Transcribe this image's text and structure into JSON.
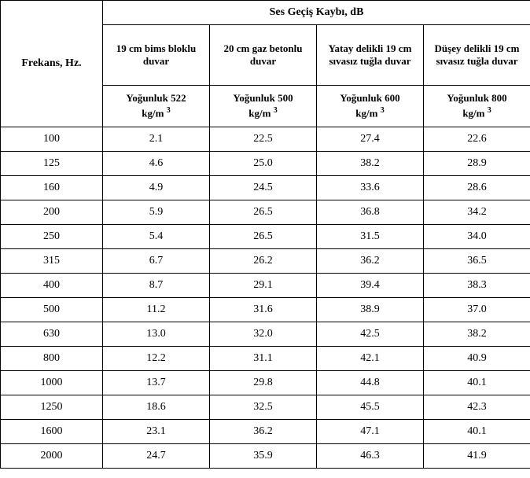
{
  "header": {
    "freq_label": "Frekans, Hz.",
    "main_label": "Ses Geçiş Kaybı, dB",
    "walls": [
      "19 cm bims bloklu duvar",
      "20 cm gaz betonlu duvar",
      "Yatay delikli 19 cm sıvasız tuğla duvar",
      "Düşey delikli 19 cm sıvasız tuğla duvar"
    ],
    "dens_prefix": "Yoğunluk ",
    "dens_values": [
      "522",
      "500",
      "600",
      "800"
    ],
    "dens_unit_html": "kg/m"
  },
  "rows": [
    {
      "f": "100",
      "v": [
        "2.1",
        "22.5",
        "27.4",
        "22.6"
      ]
    },
    {
      "f": "125",
      "v": [
        "4.6",
        "25.0",
        "38.2",
        "28.9"
      ]
    },
    {
      "f": "160",
      "v": [
        "4.9",
        "24.5",
        "33.6",
        "28.6"
      ]
    },
    {
      "f": "200",
      "v": [
        "5.9",
        "26.5",
        "36.8",
        "34.2"
      ]
    },
    {
      "f": "250",
      "v": [
        "5.4",
        "26.5",
        "31.5",
        "34.0"
      ]
    },
    {
      "f": "315",
      "v": [
        "6.7",
        "26.2",
        "36.2",
        "36.5"
      ]
    },
    {
      "f": "400",
      "v": [
        "8.7",
        "29.1",
        "39.4",
        "38.3"
      ]
    },
    {
      "f": "500",
      "v": [
        "11.2",
        "31.6",
        "38.9",
        "37.0"
      ]
    },
    {
      "f": "630",
      "v": [
        "13.0",
        "32.0",
        "42.5",
        "38.2"
      ]
    },
    {
      "f": "800",
      "v": [
        "12.2",
        "31.1",
        "42.1",
        "40.9"
      ]
    },
    {
      "f": "1000",
      "v": [
        "13.7",
        "29.8",
        "44.8",
        "40.1"
      ]
    },
    {
      "f": "1250",
      "v": [
        "18.6",
        "32.5",
        "45.5",
        "42.3"
      ]
    },
    {
      "f": "1600",
      "v": [
        "23.1",
        "36.2",
        "47.1",
        "40.1"
      ]
    },
    {
      "f": "2000",
      "v": [
        "24.7",
        "35.9",
        "46.3",
        "41.9"
      ]
    }
  ]
}
